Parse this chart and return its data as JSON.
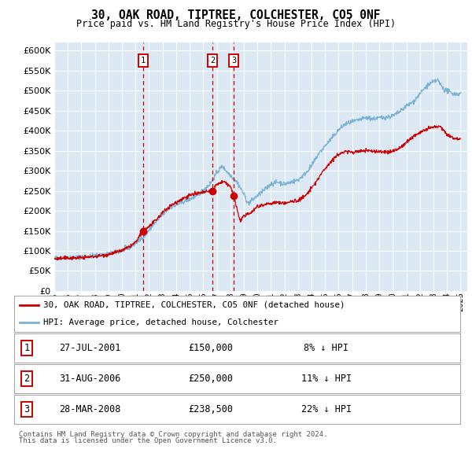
{
  "title": "30, OAK ROAD, TIPTREE, COLCHESTER, CO5 0NF",
  "subtitle": "Price paid vs. HM Land Registry's House Price Index (HPI)",
  "background_color": "#ffffff",
  "plot_bg_color": "#dce9f5",
  "hpi_color": "#7ab3d4",
  "price_color": "#cc0000",
  "vline_color": "#cc0000",
  "ylim": [
    0,
    620000
  ],
  "yticks": [
    0,
    50000,
    100000,
    150000,
    200000,
    250000,
    300000,
    350000,
    400000,
    450000,
    500000,
    550000,
    600000
  ],
  "sales": [
    {
      "label": "1",
      "date_str": "27-JUL-2001",
      "date_num": 2001.57,
      "price": 150000,
      "hpi_pct": "8% ↓ HPI"
    },
    {
      "label": "2",
      "date_str": "31-AUG-2006",
      "date_num": 2006.67,
      "price": 250000,
      "hpi_pct": "11% ↓ HPI"
    },
    {
      "label": "3",
      "date_str": "28-MAR-2008",
      "date_num": 2008.25,
      "price": 238500,
      "hpi_pct": "22% ↓ HPI"
    }
  ],
  "legend_line1": "30, OAK ROAD, TIPTREE, COLCHESTER, CO5 0NF (detached house)",
  "legend_line2": "HPI: Average price, detached house, Colchester",
  "footer1": "Contains HM Land Registry data © Crown copyright and database right 2024.",
  "footer2": "This data is licensed under the Open Government Licence v3.0."
}
